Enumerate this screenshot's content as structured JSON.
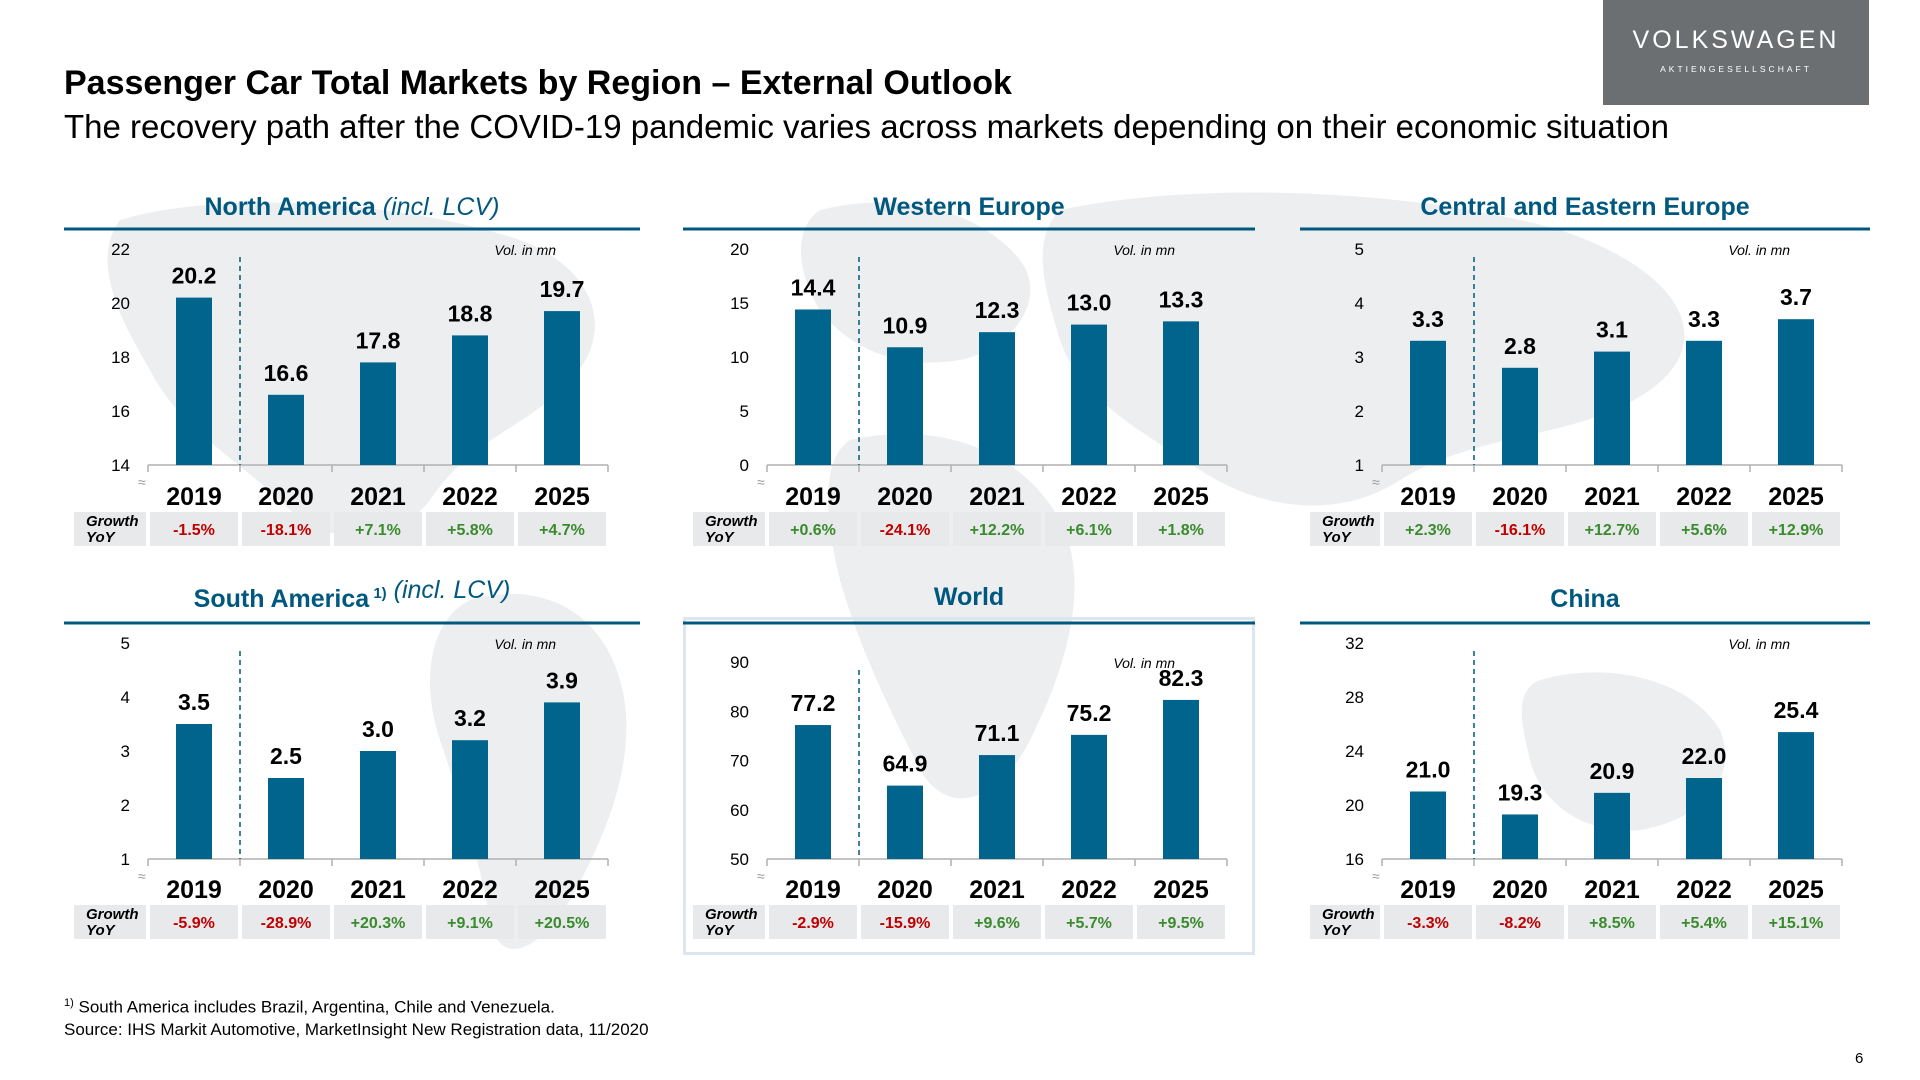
{
  "logo": {
    "brand": "VOLKSWAGEN",
    "sub": "AKTIENGESELLSCHAFT"
  },
  "header": {
    "title": "Passenger Car Total Markets by Region – External Outlook",
    "subtitle": "The recovery path after the COVID-19 pandemic varies across markets depending on their economic situation"
  },
  "colors": {
    "bar": "#00648c",
    "title": "#00587f",
    "positive": "#3a8a2e",
    "negative": "#c00000",
    "growth_cell": "#e8e9ea"
  },
  "chart_data": [
    {
      "type": "bar",
      "title": "North America",
      "title_note": "(incl. LCV)",
      "unit_label": "Vol. in mn",
      "categories": [
        "2019",
        "2020",
        "2021",
        "2022",
        "2025"
      ],
      "values": [
        20.2,
        16.6,
        17.8,
        18.8,
        19.7
      ],
      "value_labels": [
        "20.2",
        "16.6",
        "17.8",
        "18.8",
        "19.7"
      ],
      "ylim": [
        14,
        22
      ],
      "yticks": [
        "14",
        "16",
        "18",
        "20",
        "22"
      ],
      "growth_label": [
        "Growth",
        "YoY"
      ],
      "growth": [
        "-1.5%",
        "-18.1%",
        "+7.1%",
        "+5.8%",
        "+4.7%"
      ]
    },
    {
      "type": "bar",
      "title": "Western Europe",
      "title_note": "",
      "unit_label": "Vol. in mn",
      "categories": [
        "2019",
        "2020",
        "2021",
        "2022",
        "2025"
      ],
      "values": [
        14.4,
        10.9,
        12.3,
        13.0,
        13.3
      ],
      "value_labels": [
        "14.4",
        "10.9",
        "12.3",
        "13.0",
        "13.3"
      ],
      "ylim": [
        0,
        20
      ],
      "yticks": [
        "0",
        "5",
        "10",
        "15",
        "20"
      ],
      "growth_label": [
        "Growth",
        "YoY"
      ],
      "growth": [
        "+0.6%",
        "-24.1%",
        "+12.2%",
        "+6.1%",
        "+1.8%"
      ]
    },
    {
      "type": "bar",
      "title": "Central and Eastern Europe",
      "title_note": "",
      "unit_label": "Vol. in mn",
      "categories": [
        "2019",
        "2020",
        "2021",
        "2022",
        "2025"
      ],
      "values": [
        3.3,
        2.8,
        3.1,
        3.3,
        3.7
      ],
      "value_labels": [
        "3.3",
        "2.8",
        "3.1",
        "3.3",
        "3.7"
      ],
      "ylim": [
        1,
        5
      ],
      "yticks": [
        "1",
        "2",
        "3",
        "4",
        "5"
      ],
      "growth_label": [
        "Growth",
        "YoY"
      ],
      "growth": [
        "+2.3%",
        "-16.1%",
        "+12.7%",
        "+5.6%",
        "+12.9%"
      ]
    },
    {
      "type": "bar",
      "title": "South America",
      "title_sup": "1)",
      "title_note": "(incl. LCV)",
      "unit_label": "Vol. in mn",
      "categories": [
        "2019",
        "2020",
        "2021",
        "2022",
        "2025"
      ],
      "values": [
        3.5,
        2.5,
        3.0,
        3.2,
        3.9
      ],
      "value_labels": [
        "3.5",
        "2.5",
        "3.0",
        "3.2",
        "3.9"
      ],
      "ylim": [
        1,
        5
      ],
      "yticks": [
        "1",
        "2",
        "3",
        "4",
        "5"
      ],
      "growth_label": [
        "Growth",
        "YoY"
      ],
      "growth": [
        "-5.9%",
        "-28.9%",
        "+20.3%",
        "+9.1%",
        "+20.5%"
      ]
    },
    {
      "type": "bar",
      "title": "World",
      "title_note": "",
      "unit_label": "Vol. in mn",
      "categories": [
        "2019",
        "2020",
        "2021",
        "2022",
        "2025"
      ],
      "values": [
        77.2,
        64.9,
        71.1,
        75.2,
        82.3
      ],
      "value_labels": [
        "77.2",
        "64.9",
        "71.1",
        "75.2",
        "82.3"
      ],
      "ylim": [
        50,
        90
      ],
      "yticks": [
        "50",
        "60",
        "70",
        "80",
        "90"
      ],
      "growth_label": [
        "Growth",
        "YoY"
      ],
      "growth": [
        "-2.9%",
        "-15.9%",
        "+9.6%",
        "+5.7%",
        "+9.5%"
      ]
    },
    {
      "type": "bar",
      "title": "China",
      "title_note": "",
      "unit_label": "Vol. in mn",
      "categories": [
        "2019",
        "2020",
        "2021",
        "2022",
        "2025"
      ],
      "values": [
        21.0,
        19.3,
        20.9,
        22.0,
        25.4
      ],
      "value_labels": [
        "21.0",
        "19.3",
        "20.9",
        "22.0",
        "25.4"
      ],
      "ylim": [
        16,
        32
      ],
      "yticks": [
        "16",
        "20",
        "24",
        "28",
        "32"
      ],
      "growth_label": [
        "Growth",
        "YoY"
      ],
      "growth": [
        "-3.3%",
        "-8.2%",
        "+8.5%",
        "+5.4%",
        "+15.1%"
      ]
    }
  ],
  "footnote": {
    "sup": "1)",
    "line1": "South America includes Brazil, Argentina, Chile and Venezuela.",
    "line2": "Source: IHS Markit Automotive, MarketInsight New Registration data, 11/2020"
  },
  "page_number": "6"
}
